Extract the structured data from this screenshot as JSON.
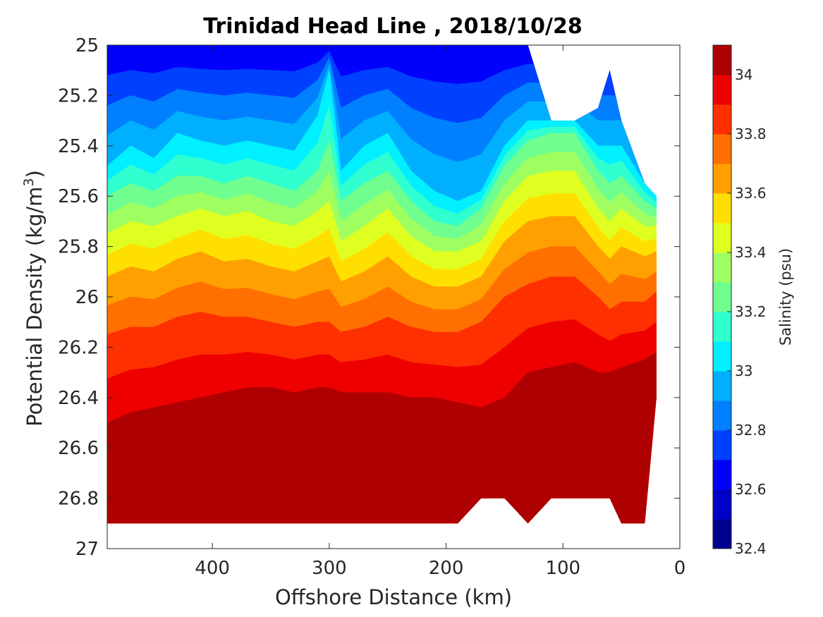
{
  "chart_data": {
    "type": "heatmap",
    "subtype": "filled-contour",
    "title": "Trinidad Head Line , 2018/10/28",
    "xlabel": "Offshore Distance (km)",
    "ylabel_main": "Potential Density (kg/m",
    "ylabel_sup": "3",
    "ylabel_close": ")",
    "xlim": [
      490,
      0
    ],
    "ylim": [
      25,
      27
    ],
    "y_reversed": true,
    "x_reversed": true,
    "xticks": [
      400,
      300,
      200,
      100,
      0
    ],
    "yticks": [
      25,
      25.2,
      25.4,
      25.6,
      25.8,
      26,
      26.2,
      26.4,
      26.6,
      26.8,
      27
    ],
    "colorbar": {
      "label": "Salinity (psu)",
      "range": [
        32.4,
        34.1
      ],
      "ticks": [
        32.4,
        32.6,
        32.8,
        33,
        33.2,
        33.4,
        33.6,
        33.8,
        34
      ],
      "levels": [
        32.4,
        32.5,
        32.6,
        32.7,
        32.8,
        32.9,
        33.0,
        33.1,
        33.2,
        33.3,
        33.4,
        33.5,
        33.6,
        33.7,
        33.8,
        33.9,
        34.0,
        34.1
      ],
      "colors": [
        "#00008f",
        "#0000c7",
        "#0000fc",
        "#0040ff",
        "#0080ff",
        "#00b0ff",
        "#00f0ff",
        "#30ffcf",
        "#70ff8f",
        "#a0ff60",
        "#dfff20",
        "#ffdf00",
        "#ffa000",
        "#ff7000",
        "#ff3000",
        "#ef0000",
        "#ae0000"
      ]
    },
    "grid": false,
    "missing_data_regions": [
      {
        "x": [
          120,
          100,
          80,
          62
        ],
        "y_top": [
          25.0,
          25.3,
          25.3,
          25.1
        ]
      },
      {
        "x": [
          190,
          180,
          155
        ],
        "y_bottom": [
          26.9,
          26.8,
          26.8
        ]
      },
      {
        "x": [
          140,
          130,
          120,
          60,
          50
        ],
        "y_bottom": [
          26.8,
          26.9,
          26.8,
          26.8,
          26.9
        ]
      }
    ],
    "stations_km": [
      490,
      470,
      450,
      430,
      410,
      390,
      370,
      350,
      330,
      310,
      300,
      290,
      270,
      250,
      230,
      210,
      190,
      170,
      150,
      130,
      110,
      90,
      70,
      60,
      50,
      30,
      20
    ],
    "bottom_density_by_station": [
      26.9,
      26.9,
      26.9,
      26.9,
      26.9,
      26.9,
      26.9,
      26.9,
      26.9,
      26.9,
      26.9,
      26.9,
      26.9,
      26.9,
      26.9,
      26.9,
      26.9,
      26.8,
      26.8,
      26.9,
      26.8,
      26.8,
      26.8,
      26.8,
      26.9,
      26.9,
      26.4
    ],
    "top_density_by_station": [
      25.0,
      25.0,
      25.0,
      25.0,
      25.0,
      25.0,
      25.0,
      25.0,
      25.0,
      25.0,
      25.0,
      25.0,
      25.0,
      25.0,
      25.0,
      25.0,
      25.0,
      25.0,
      25.0,
      25.0,
      25.3,
      25.3,
      25.25,
      25.1,
      25.3,
      25.55,
      25.6
    ],
    "isohaline_density": {
      "33.0": [
        25.48,
        25.4,
        25.45,
        25.35,
        25.38,
        25.4,
        25.38,
        25.4,
        25.42,
        25.28,
        25.1,
        25.5,
        25.4,
        25.35,
        25.5,
        25.58,
        25.62,
        25.58,
        25.4,
        25.3,
        25.3,
        25.3,
        25.4,
        25.4,
        25.4,
        25.55,
        25.6
      ],
      "33.2": [
        25.6,
        25.55,
        25.58,
        25.52,
        25.52,
        25.55,
        25.52,
        25.55,
        25.58,
        25.5,
        25.38,
        25.62,
        25.55,
        25.5,
        25.62,
        25.7,
        25.72,
        25.65,
        25.48,
        25.38,
        25.35,
        25.35,
        25.5,
        25.55,
        25.52,
        25.62,
        25.65
      ],
      "33.4": [
        25.75,
        25.7,
        25.72,
        25.68,
        25.65,
        25.68,
        25.66,
        25.7,
        25.72,
        25.66,
        25.62,
        25.78,
        25.72,
        25.65,
        25.76,
        25.82,
        25.82,
        25.78,
        25.62,
        25.52,
        25.5,
        25.5,
        25.65,
        25.7,
        25.65,
        25.72,
        25.72
      ],
      "33.6": [
        25.92,
        25.88,
        25.9,
        25.85,
        25.82,
        25.86,
        25.85,
        25.88,
        25.9,
        25.86,
        25.84,
        25.94,
        25.9,
        25.84,
        25.92,
        25.96,
        25.96,
        25.92,
        25.78,
        25.7,
        25.68,
        25.68,
        25.8,
        25.85,
        25.8,
        25.84,
        25.82
      ],
      "33.8": [
        26.15,
        26.12,
        26.12,
        26.08,
        26.06,
        26.08,
        26.08,
        26.1,
        26.12,
        26.1,
        26.1,
        26.14,
        26.12,
        26.08,
        26.12,
        26.14,
        26.14,
        26.1,
        26.0,
        25.95,
        25.92,
        25.92,
        26.0,
        26.05,
        26.02,
        26.02,
        25.98
      ],
      "34.0": [
        26.5,
        26.46,
        26.44,
        26.42,
        26.4,
        26.38,
        26.36,
        26.36,
        26.38,
        26.36,
        26.36,
        26.38,
        26.38,
        26.38,
        26.4,
        26.4,
        26.42,
        26.44,
        26.4,
        26.3,
        26.28,
        26.26,
        26.3,
        26.3,
        26.28,
        26.25,
        26.22
      ]
    }
  }
}
